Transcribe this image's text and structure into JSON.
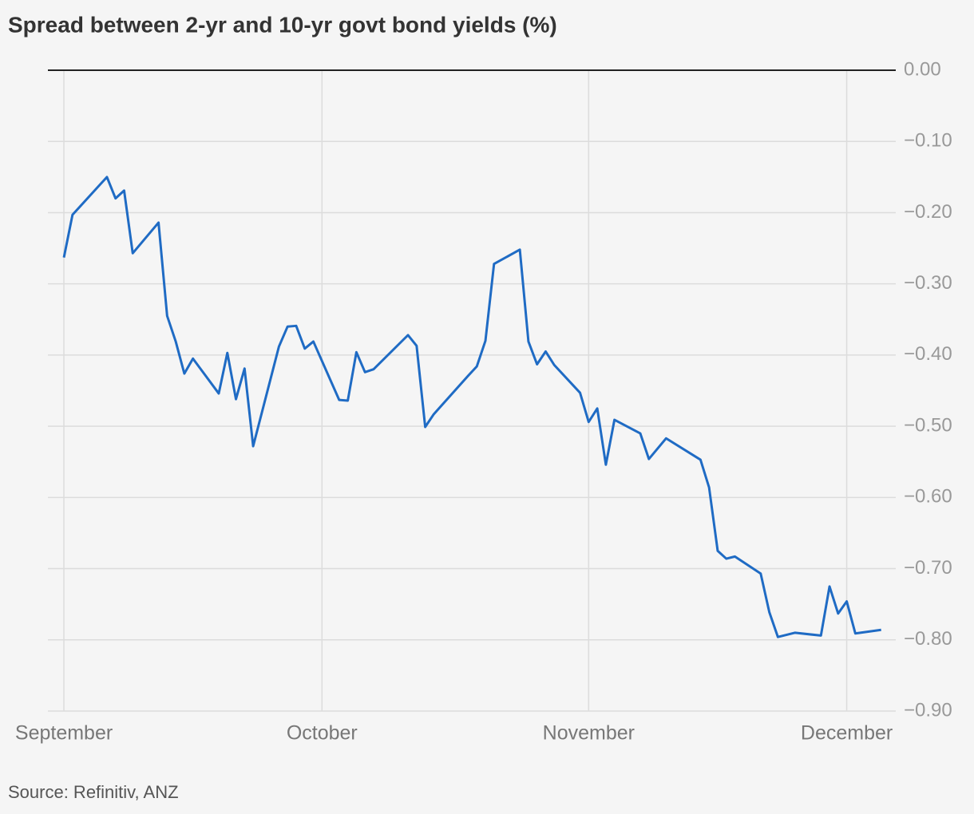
{
  "chart_data": {
    "type": "line",
    "title": "Spread between 2-yr and 10-yr govt bond yields (%)",
    "source": "Source: Refinitiv, ANZ",
    "x": [
      0,
      1,
      5,
      6,
      7,
      8,
      11,
      12,
      13,
      14,
      15,
      18,
      19,
      20,
      21,
      22,
      25,
      26,
      27,
      28,
      29,
      32,
      33,
      34,
      35,
      36,
      40,
      41,
      42,
      43,
      47,
      48,
      49,
      50,
      53,
      54,
      55,
      56,
      57,
      60,
      61,
      62,
      63,
      64,
      67,
      68,
      70,
      74,
      75,
      76,
      77,
      78,
      81,
      82,
      83,
      85,
      88,
      89,
      90,
      91,
      92,
      95
    ],
    "series": [
      {
        "name": "Spread",
        "color": "#1f6bc4",
        "values": [
          -0.263,
          -0.203,
          -0.15,
          -0.18,
          -0.169,
          -0.257,
          -0.214,
          -0.345,
          -0.381,
          -0.426,
          -0.405,
          -0.454,
          -0.397,
          -0.462,
          -0.419,
          -0.528,
          -0.388,
          -0.36,
          -0.359,
          -0.391,
          -0.381,
          -0.463,
          -0.464,
          -0.396,
          -0.424,
          -0.42,
          -0.372,
          -0.387,
          -0.501,
          -0.483,
          -0.429,
          -0.416,
          -0.38,
          -0.272,
          -0.252,
          -0.381,
          -0.413,
          -0.395,
          -0.414,
          -0.453,
          -0.494,
          -0.475,
          -0.554,
          -0.491,
          -0.51,
          -0.546,
          -0.517,
          -0.547,
          -0.586,
          -0.675,
          -0.686,
          -0.683,
          -0.707,
          -0.761,
          -0.796,
          -0.79,
          -0.794,
          -0.725,
          -0.763,
          -0.746,
          -0.791,
          -0.786
        ]
      }
    ],
    "xlim": [
      -1.86,
      96.7
    ],
    "xticks": [
      {
        "value": 0,
        "label": "September"
      },
      {
        "value": 30,
        "label": "October"
      },
      {
        "value": 61,
        "label": "November"
      },
      {
        "value": 91,
        "label": "December"
      }
    ],
    "ylim": [
      -0.9,
      0
    ],
    "yticks": [
      {
        "value": 0,
        "label": "0.00"
      },
      {
        "value": -0.1,
        "label": "−0.10"
      },
      {
        "value": -0.2,
        "label": "−0.20"
      },
      {
        "value": -0.3,
        "label": "−0.30"
      },
      {
        "value": -0.4,
        "label": "−0.40"
      },
      {
        "value": -0.5,
        "label": "−0.50"
      },
      {
        "value": -0.6,
        "label": "−0.60"
      },
      {
        "value": -0.7,
        "label": "−0.70"
      },
      {
        "value": -0.8,
        "label": "−0.80"
      },
      {
        "value": -0.9,
        "label": "−0.90"
      }
    ],
    "grid": true
  }
}
